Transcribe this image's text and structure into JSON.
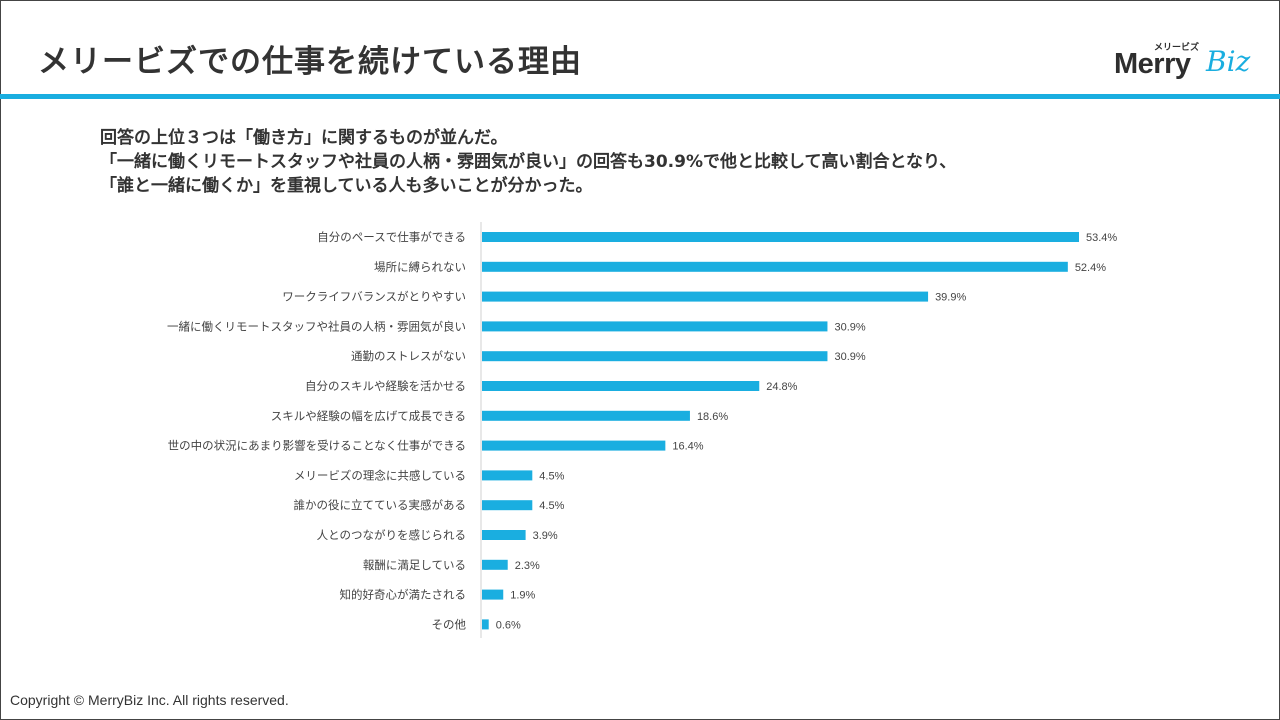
{
  "page": {
    "title": "メリービズでの仕事を続けている理由",
    "intro_lines": [
      "回答の上位３つは「働き方」に関するものが並んだ。",
      "「一緒に働くリモートスタッフや社員の人柄・雰囲気が良い」の回答も30.9%で他と比較して高い割合となり、",
      "「誰と一緒に働くか」を重視している人も多いことが分かった。"
    ],
    "footer": "Copyright © MerryBiz Inc. All rights reserved."
  },
  "logo": {
    "brand_main": "Merry",
    "brand_accent": "Biz",
    "kana": "メリービズ"
  },
  "colors": {
    "accent": "#1aaee0",
    "text": "#333333"
  },
  "chart_data": {
    "type": "bar",
    "orientation": "horizontal",
    "categories": [
      "自分のペースで仕事ができる",
      "場所に縛られない",
      "ワークライフバランスがとりやすい",
      "一緒に働くリモートスタッフや社員の人柄・雰囲気が良い",
      "通勤のストレスがない",
      "自分のスキルや経験を活かせる",
      "スキルや経験の幅を広げて成長できる",
      "世の中の状況にあまり影響を受けることなく仕事ができる",
      "メリービズの理念に共感している",
      "誰かの役に立てている実感がある",
      "人とのつながりを感じられる",
      "報酬に満足している",
      "知的好奇心が満たされる",
      "その他"
    ],
    "values": [
      53.4,
      52.4,
      39.9,
      30.9,
      30.9,
      24.8,
      18.6,
      16.4,
      4.5,
      4.5,
      3.9,
      2.3,
      1.9,
      0.6
    ],
    "value_labels": [
      "53.4%",
      "52.4%",
      "39.9%",
      "30.9%",
      "30.9%",
      "24.8%",
      "18.6%",
      "16.4%",
      "4.5%",
      "4.5%",
      "3.9%",
      "2.3%",
      "1.9%",
      "0.6%"
    ],
    "unit": "%",
    "xlim": [
      0,
      60
    ],
    "grid": false,
    "legend": "none"
  }
}
